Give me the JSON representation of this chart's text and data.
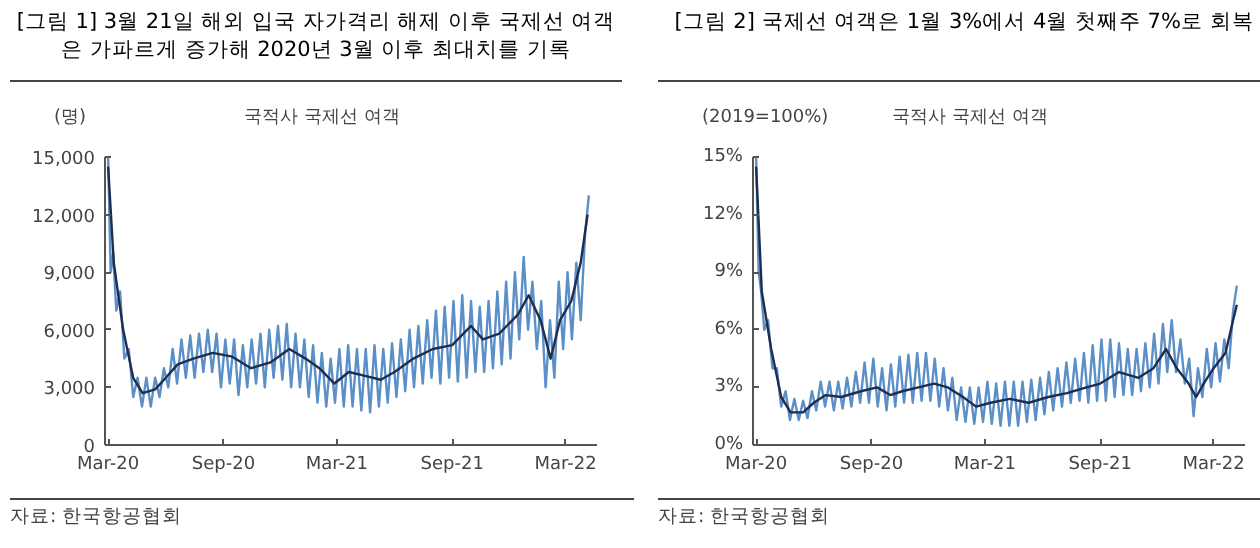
{
  "chart_data": [
    {
      "type": "line",
      "title": "[그림 1] 3월 21일 해외 입국 자가격리 해제 이후 국제선 여객은 가파르게 증가해 2020년 3월 이후 최대치를 기록",
      "subtitle": "국적사 국제선 여객",
      "ylabel": "(명)",
      "annotations": [
        "자료: 한국항공협회"
      ],
      "xlim": [
        "2020-02-25",
        "2022-04-20"
      ],
      "xticks": [
        {
          "value": "2020-03-01",
          "label": "Mar-20"
        },
        {
          "value": "2020-09-01",
          "label": "Sep-20"
        },
        {
          "value": "2021-03-01",
          "label": "Mar-21"
        },
        {
          "value": "2021-09-01",
          "label": "Sep-21"
        },
        {
          "value": "2022-03-01",
          "label": "Mar-22"
        }
      ],
      "ylim": [
        0,
        15000
      ],
      "yticks": [
        0,
        {
          "value": 3000,
          "label": "3,000"
        },
        {
          "value": 6000,
          "label": "6,000"
        },
        {
          "value": 9000,
          "label": "9,000"
        },
        {
          "value": 12000,
          "label": "12,000"
        },
        {
          "value": 15000,
          "label": "15,000"
        }
      ],
      "grid": false,
      "series": [
        {
          "color": "#5b8fc7",
          "x": [
            "2020-03-01",
            "2020-03-05",
            "2020-03-09",
            "2020-03-14",
            "2020-03-20",
            "2020-03-27",
            "2020-04-03",
            "2020-04-10",
            "2020-04-17",
            "2020-04-24",
            "2020-05-01",
            "2020-05-08",
            "2020-05-15",
            "2020-05-22",
            "2020-05-29",
            "2020-06-05",
            "2020-06-12",
            "2020-06-19",
            "2020-06-26",
            "2020-07-03",
            "2020-07-10",
            "2020-07-17",
            "2020-07-24",
            "2020-07-31",
            "2020-08-07",
            "2020-08-14",
            "2020-08-21",
            "2020-08-28",
            "2020-09-04",
            "2020-09-11",
            "2020-09-18",
            "2020-09-25",
            "2020-10-02",
            "2020-10-09",
            "2020-10-16",
            "2020-10-23",
            "2020-10-30",
            "2020-11-06",
            "2020-11-13",
            "2020-11-20",
            "2020-11-27",
            "2020-12-04",
            "2020-12-11",
            "2020-12-18",
            "2020-12-25",
            "2021-01-01",
            "2021-01-08",
            "2021-01-15",
            "2021-01-22",
            "2021-01-29",
            "2021-02-05",
            "2021-02-12",
            "2021-02-19",
            "2021-02-26",
            "2021-03-05",
            "2021-03-12",
            "2021-03-19",
            "2021-03-26",
            "2021-04-02",
            "2021-04-09",
            "2021-04-16",
            "2021-04-23",
            "2021-04-30",
            "2021-05-07",
            "2021-05-14",
            "2021-05-21",
            "2021-05-28",
            "2021-06-04",
            "2021-06-11",
            "2021-06-18",
            "2021-06-25",
            "2021-07-02",
            "2021-07-09",
            "2021-07-16",
            "2021-07-23",
            "2021-07-30",
            "2021-08-06",
            "2021-08-13",
            "2021-08-20",
            "2021-08-27",
            "2021-09-03",
            "2021-09-10",
            "2021-09-17",
            "2021-09-24",
            "2021-10-01",
            "2021-10-08",
            "2021-10-15",
            "2021-10-22",
            "2021-10-29",
            "2021-11-05",
            "2021-11-12",
            "2021-11-19",
            "2021-11-26",
            "2021-12-03",
            "2021-12-10",
            "2021-12-17",
            "2021-12-24",
            "2021-12-31",
            "2022-01-07",
            "2022-01-14",
            "2022-01-21",
            "2022-01-28",
            "2022-02-04",
            "2022-02-11",
            "2022-02-18",
            "2022-02-25",
            "2022-03-04",
            "2022-03-11",
            "2022-03-18",
            "2022-03-25",
            "2022-04-01",
            "2022-04-07"
          ],
          "values": [
            15000,
            9000,
            10000,
            7000,
            8000,
            4500,
            5000,
            2500,
            3500,
            2000,
            3500,
            2000,
            3500,
            2500,
            4000,
            3000,
            5000,
            3200,
            5500,
            3500,
            5700,
            3500,
            5800,
            3800,
            6000,
            3800,
            5800,
            3000,
            5500,
            3200,
            5500,
            2600,
            5200,
            3000,
            5500,
            3200,
            5800,
            3000,
            6000,
            3500,
            6200,
            3400,
            6300,
            3000,
            5800,
            3000,
            5500,
            2500,
            5200,
            2200,
            4800,
            2000,
            4500,
            2200,
            5000,
            2000,
            5200,
            2000,
            5000,
            1800,
            5000,
            1700,
            5200,
            2000,
            5000,
            2200,
            5300,
            2500,
            5500,
            2800,
            6000,
            3000,
            6200,
            3200,
            6500,
            3500,
            7000,
            3200,
            7200,
            3500,
            7500,
            3300,
            7800,
            3500,
            7500,
            3800,
            7200,
            3800,
            7500,
            4000,
            8000,
            4200,
            8500,
            4500,
            9000,
            5500,
            9800,
            6000,
            8500,
            5000,
            7500,
            3000,
            6500,
            3500,
            8500,
            5000,
            9000,
            5500,
            9500,
            6500,
            11000,
            13000
          ]
        },
        {
          "color": "#1f2d4f",
          "x": [
            "2020-03-01",
            "2020-03-10",
            "2020-03-25",
            "2020-04-10",
            "2020-04-25",
            "2020-05-15",
            "2020-06-01",
            "2020-06-20",
            "2020-07-15",
            "2020-08-15",
            "2020-09-15",
            "2020-10-15",
            "2020-11-15",
            "2020-12-15",
            "2021-01-10",
            "2021-02-01",
            "2021-02-25",
            "2021-03-20",
            "2021-04-15",
            "2021-05-10",
            "2021-06-01",
            "2021-07-01",
            "2021-08-01",
            "2021-09-01",
            "2021-10-01",
            "2021-10-20",
            "2021-11-15",
            "2021-12-15",
            "2022-01-01",
            "2022-01-20",
            "2022-02-05",
            "2022-02-20",
            "2022-03-10",
            "2022-03-25",
            "2022-04-05"
          ],
          "values": [
            14500,
            9500,
            6000,
            3500,
            2700,
            2900,
            3500,
            4200,
            4500,
            4800,
            4600,
            4000,
            4300,
            5000,
            4500,
            4000,
            3200,
            3800,
            3600,
            3400,
            3800,
            4500,
            5000,
            5200,
            6200,
            5500,
            5800,
            6800,
            7800,
            6500,
            4500,
            6500,
            7500,
            9500,
            12000
          ]
        }
      ]
    },
    {
      "type": "line",
      "title": "[그림 2] 국제선 여객은 1월 3%에서 4월 첫째주 7%로 회복",
      "subtitle": "국적사 국제선 여객",
      "ylabel": "(2019=100%)",
      "annotations": [
        "자료: 한국항공협회"
      ],
      "xlim": [
        "2020-02-25",
        "2022-04-20"
      ],
      "xticks": [
        {
          "value": "2020-03-01",
          "label": "Mar-20"
        },
        {
          "value": "2020-09-01",
          "label": "Sep-20"
        },
        {
          "value": "2021-03-01",
          "label": "Mar-21"
        },
        {
          "value": "2021-09-01",
          "label": "Sep-21"
        },
        {
          "value": "2022-03-01",
          "label": "Mar-22"
        }
      ],
      "ylim": [
        0,
        15
      ],
      "yticks": [
        {
          "value": 0,
          "label": "0%"
        },
        {
          "value": 3,
          "label": "3%"
        },
        {
          "value": 6,
          "label": "6%"
        },
        {
          "value": 9,
          "label": "9%"
        },
        {
          "value": 12,
          "label": "12%"
        },
        {
          "value": 15,
          "label": "15%"
        }
      ],
      "grid": false,
      "series": [
        {
          "color": "#5b8fc7",
          "x": [
            "2020-03-01",
            "2020-03-05",
            "2020-03-09",
            "2020-03-14",
            "2020-03-20",
            "2020-03-27",
            "2020-04-03",
            "2020-04-10",
            "2020-04-17",
            "2020-04-24",
            "2020-05-01",
            "2020-05-08",
            "2020-05-15",
            "2020-05-22",
            "2020-05-29",
            "2020-06-05",
            "2020-06-12",
            "2020-06-19",
            "2020-06-26",
            "2020-07-03",
            "2020-07-10",
            "2020-07-17",
            "2020-07-24",
            "2020-07-31",
            "2020-08-07",
            "2020-08-14",
            "2020-08-21",
            "2020-08-28",
            "2020-09-04",
            "2020-09-11",
            "2020-09-18",
            "2020-09-25",
            "2020-10-02",
            "2020-10-09",
            "2020-10-16",
            "2020-10-23",
            "2020-10-30",
            "2020-11-06",
            "2020-11-13",
            "2020-11-20",
            "2020-11-27",
            "2020-12-04",
            "2020-12-11",
            "2020-12-18",
            "2020-12-25",
            "2021-01-01",
            "2021-01-08",
            "2021-01-15",
            "2021-01-22",
            "2021-01-29",
            "2021-02-05",
            "2021-02-12",
            "2021-02-19",
            "2021-02-26",
            "2021-03-05",
            "2021-03-12",
            "2021-03-19",
            "2021-03-26",
            "2021-04-02",
            "2021-04-09",
            "2021-04-16",
            "2021-04-23",
            "2021-04-30",
            "2021-05-07",
            "2021-05-14",
            "2021-05-21",
            "2021-05-28",
            "2021-06-04",
            "2021-06-11",
            "2021-06-18",
            "2021-06-25",
            "2021-07-02",
            "2021-07-09",
            "2021-07-16",
            "2021-07-23",
            "2021-07-30",
            "2021-08-06",
            "2021-08-13",
            "2021-08-20",
            "2021-08-27",
            "2021-09-03",
            "2021-09-10",
            "2021-09-17",
            "2021-09-24",
            "2021-10-01",
            "2021-10-08",
            "2021-10-15",
            "2021-10-22",
            "2021-10-29",
            "2021-11-05",
            "2021-11-12",
            "2021-11-19",
            "2021-11-26",
            "2021-12-03",
            "2021-12-10",
            "2021-12-17",
            "2021-12-24",
            "2021-12-31",
            "2022-01-07",
            "2022-01-14",
            "2022-01-21",
            "2022-01-28",
            "2022-02-04",
            "2022-02-11",
            "2022-02-18",
            "2022-02-25",
            "2022-03-04",
            "2022-03-11",
            "2022-03-18",
            "2022-03-25",
            "2022-04-01",
            "2022-04-07"
          ],
          "values": [
            15,
            9,
            8,
            6,
            6.5,
            4,
            4,
            2,
            2.8,
            1.3,
            2.4,
            1.3,
            2.3,
            1.4,
            2.8,
            1.8,
            3.3,
            2,
            3.3,
            1.8,
            3.3,
            1.9,
            3.5,
            2,
            3.8,
            2.2,
            4.3,
            2.2,
            4.5,
            2,
            4,
            1.8,
            4.2,
            2,
            4.6,
            2.2,
            4.7,
            2.2,
            4.8,
            2.3,
            4.8,
            2.3,
            4.5,
            2,
            4,
            1.8,
            3.5,
            1.3,
            3,
            1.2,
            3,
            1.1,
            3,
            1.2,
            3.3,
            1.1,
            3.2,
            1,
            3.3,
            1,
            3.3,
            1,
            3.3,
            1.2,
            3.4,
            1.3,
            3.5,
            1.6,
            3.8,
            1.8,
            4,
            2,
            4.3,
            2.2,
            4.5,
            2.3,
            4.8,
            2.2,
            5.2,
            2.3,
            5.5,
            2.3,
            5.5,
            2.5,
            5.3,
            2.6,
            5,
            2.6,
            5,
            2.8,
            5.3,
            3,
            5.8,
            3.2,
            6.3,
            3.8,
            6.5,
            3.8,
            5.5,
            3.2,
            4.5,
            1.5,
            4,
            2.5,
            5,
            3,
            5.3,
            3.3,
            5.5,
            4,
            7,
            8.3
          ]
        },
        {
          "color": "#1f2d4f",
          "x": [
            "2020-03-01",
            "2020-03-10",
            "2020-03-25",
            "2020-04-10",
            "2020-04-25",
            "2020-05-15",
            "2020-06-01",
            "2020-06-20",
            "2020-07-15",
            "2020-08-15",
            "2020-09-10",
            "2020-10-01",
            "2020-10-20",
            "2020-11-15",
            "2020-12-10",
            "2021-01-01",
            "2021-01-25",
            "2021-02-15",
            "2021-03-10",
            "2021-04-10",
            "2021-05-10",
            "2021-06-10",
            "2021-07-10",
            "2021-08-10",
            "2021-09-01",
            "2021-10-01",
            "2021-11-01",
            "2021-11-25",
            "2021-12-15",
            "2022-01-01",
            "2022-01-20",
            "2022-02-01",
            "2022-02-15",
            "2022-03-01",
            "2022-03-20",
            "2022-04-01",
            "2022-04-07"
          ],
          "values": [
            14.5,
            8,
            5,
            2.5,
            1.7,
            1.7,
            2.2,
            2.6,
            2.5,
            2.8,
            3,
            2.6,
            2.8,
            3,
            3.2,
            3,
            2.5,
            2,
            2.2,
            2.4,
            2.2,
            2.5,
            2.7,
            3,
            3.2,
            3.8,
            3.5,
            4,
            5,
            4,
            3.2,
            2.5,
            3.3,
            4,
            4.8,
            6.5,
            7.3
          ]
        }
      ]
    }
  ]
}
